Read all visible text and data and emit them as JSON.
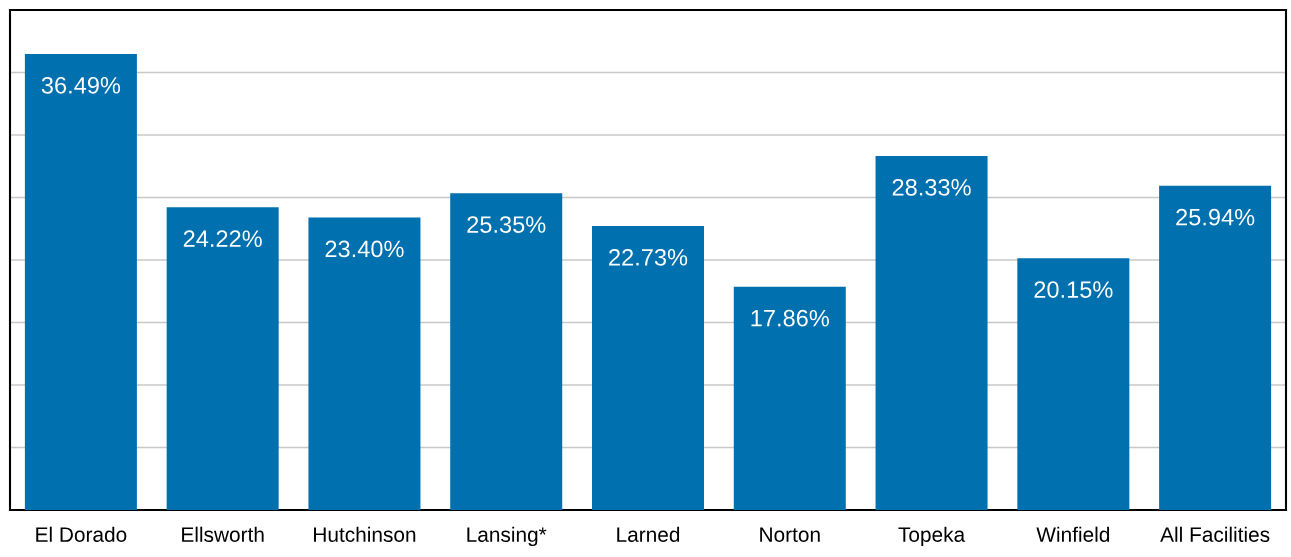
{
  "chart_data": {
    "type": "bar",
    "categories": [
      "El Dorado",
      "Ellsworth",
      "Hutchinson",
      "Lansing*",
      "Larned",
      "Norton",
      "Topeka",
      "Winfield",
      "All Facilities"
    ],
    "values": [
      36.49,
      24.22,
      23.4,
      25.35,
      22.73,
      17.86,
      28.33,
      20.15,
      25.94
    ],
    "value_labels": [
      "36.49%",
      "24.22%",
      "23.40%",
      "25.35%",
      "22.73%",
      "17.86%",
      "28.33%",
      "20.15%",
      "25.94%"
    ],
    "color": "#0070ae",
    "ylim": [
      0,
      40
    ],
    "yticks": [
      {
        "value": 0,
        "label": null
      },
      {
        "value": 5,
        "label": null
      },
      {
        "value": 10,
        "label": null
      },
      {
        "value": 15,
        "label": null
      },
      {
        "value": 20,
        "label": null
      },
      {
        "value": 25,
        "label": null
      },
      {
        "value": 30,
        "label": null
      },
      {
        "value": 35,
        "label": null
      },
      {
        "value": 40,
        "label": null
      }
    ],
    "grid": "y",
    "tick_labels": "x",
    "legend": false
  }
}
